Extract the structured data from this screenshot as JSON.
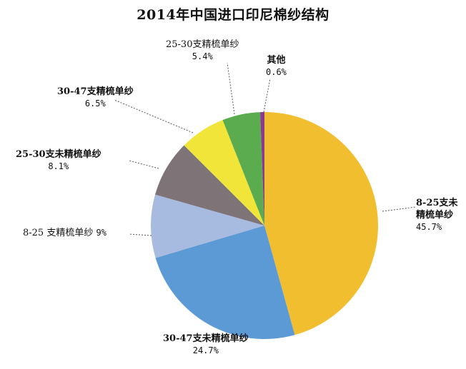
{
  "chart_data": {
    "type": "pie",
    "title": "2014年中国进口印尼棉纱结构",
    "start": "top",
    "direction": "clockwise",
    "slices": [
      {
        "label": "8-25支未精梳单纱",
        "value": 45.7,
        "value_label": "45.7%",
        "color": "#F1BE2F"
      },
      {
        "label": "30-47支未精梳单纱",
        "value": 24.7,
        "value_label": "24.7%",
        "color": "#5C9AD6"
      },
      {
        "label": "8-25 支精梳单纱",
        "value": 9,
        "value_label": "9%",
        "color": "#A7BADF"
      },
      {
        "label": "25-30支未精梳单纱",
        "value": 8.1,
        "value_label": "8.1%",
        "color": "#7E7477"
      },
      {
        "label": "30-47支精梳单纱",
        "value": 6.5,
        "value_label": "6.5%",
        "color": "#F1E53A"
      },
      {
        "label": "25-30支精梳单纱",
        "value": 5.4,
        "value_label": "5.4%",
        "color": "#5AAC4E"
      },
      {
        "label": "其他",
        "value": 0.6,
        "value_label": "0.6%",
        "color": "#8A3B8E"
      }
    ]
  }
}
